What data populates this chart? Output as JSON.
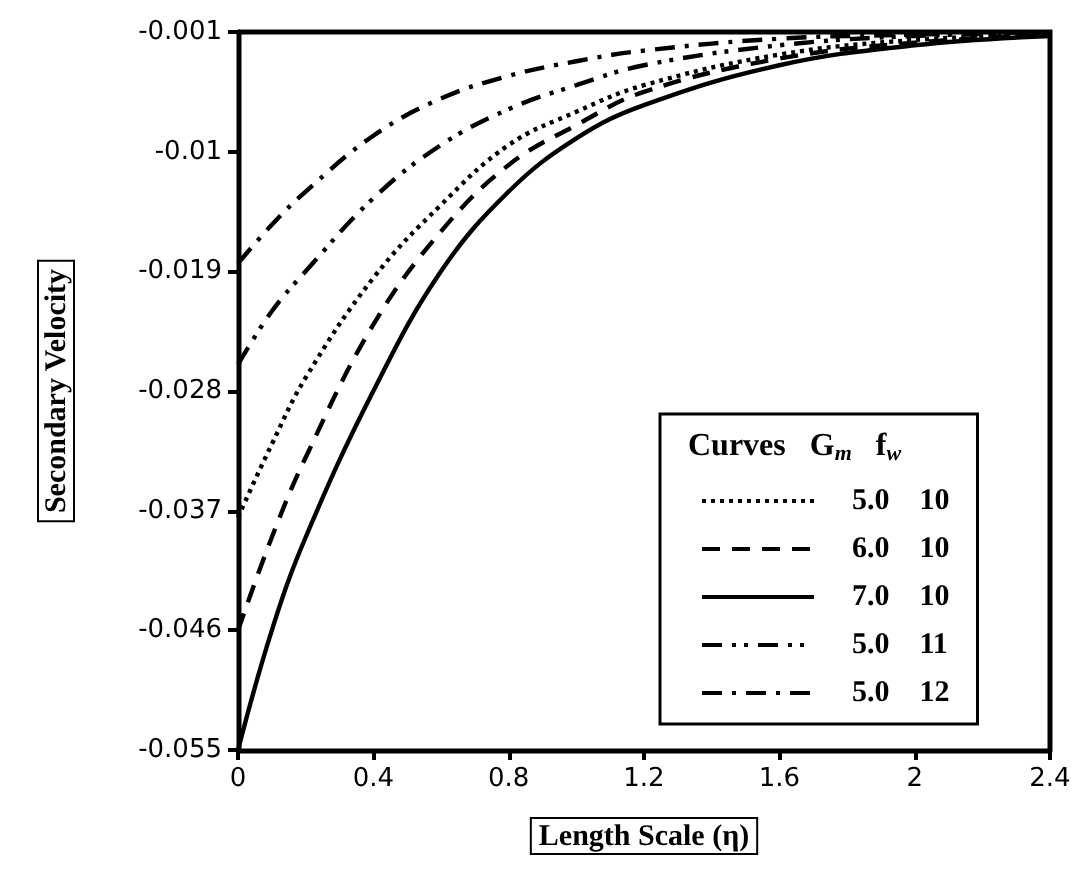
{
  "chart_data": {
    "type": "line",
    "xlabel": "Length Scale (η)",
    "ylabel": "Secondary Velocity",
    "legend_title": "Curves   G$_{m}$   f$_{w}$",
    "legend": "bottom right",
    "grid": false,
    "marker": "none",
    "x": [
      0,
      0.1,
      0.2,
      0.4,
      0.6,
      0.8,
      1.0,
      1.2,
      1.6,
      2.0,
      2.4
    ],
    "xlim": [
      0,
      2.4
    ],
    "xticks": [
      0,
      0.4,
      0.8,
      1.2,
      1.6,
      2,
      2.4
    ],
    "ylim": [
      -0.055,
      -0.001
    ],
    "yticks": [
      -0.055,
      -0.046,
      -0.037,
      -0.028,
      -0.019,
      -0.01,
      -0.001
    ],
    "series": [
      {
        "name": "5.0    10",
        "color": "#000000",
        "line_style": "dotted",
        "values": [
          -0.0375,
          -0.032,
          -0.027,
          -0.0195,
          -0.014,
          -0.0095,
          -0.007,
          -0.005,
          -0.0027,
          -0.0016,
          -0.0012
        ]
      },
      {
        "name": "6.0    10",
        "color": "#000000",
        "line_style": "dashed",
        "values": [
          -0.046,
          -0.039,
          -0.033,
          -0.023,
          -0.016,
          -0.011,
          -0.008,
          -0.0055,
          -0.003,
          -0.0018,
          -0.0012
        ]
      },
      {
        "name": "7.0    10",
        "color": "#000000",
        "line_style": "solid",
        "values": [
          -0.055,
          -0.046,
          -0.039,
          -0.028,
          -0.019,
          -0.013,
          -0.009,
          -0.0065,
          -0.0035,
          -0.002,
          -0.0013
        ]
      },
      {
        "name": "5.0    11",
        "color": "#000000",
        "line_style": "dashdotdot",
        "values": [
          -0.026,
          -0.022,
          -0.019,
          -0.0135,
          -0.0095,
          -0.0068,
          -0.005,
          -0.0035,
          -0.002,
          -0.0013,
          -0.0011
        ]
      },
      {
        "name": "5.0    12",
        "color": "#000000",
        "line_style": "dashdot",
        "values": [
          -0.0184,
          -0.0155,
          -0.013,
          -0.0088,
          -0.006,
          -0.0043,
          -0.0032,
          -0.0024,
          -0.0015,
          -0.0012,
          -0.001
        ]
      }
    ]
  }
}
